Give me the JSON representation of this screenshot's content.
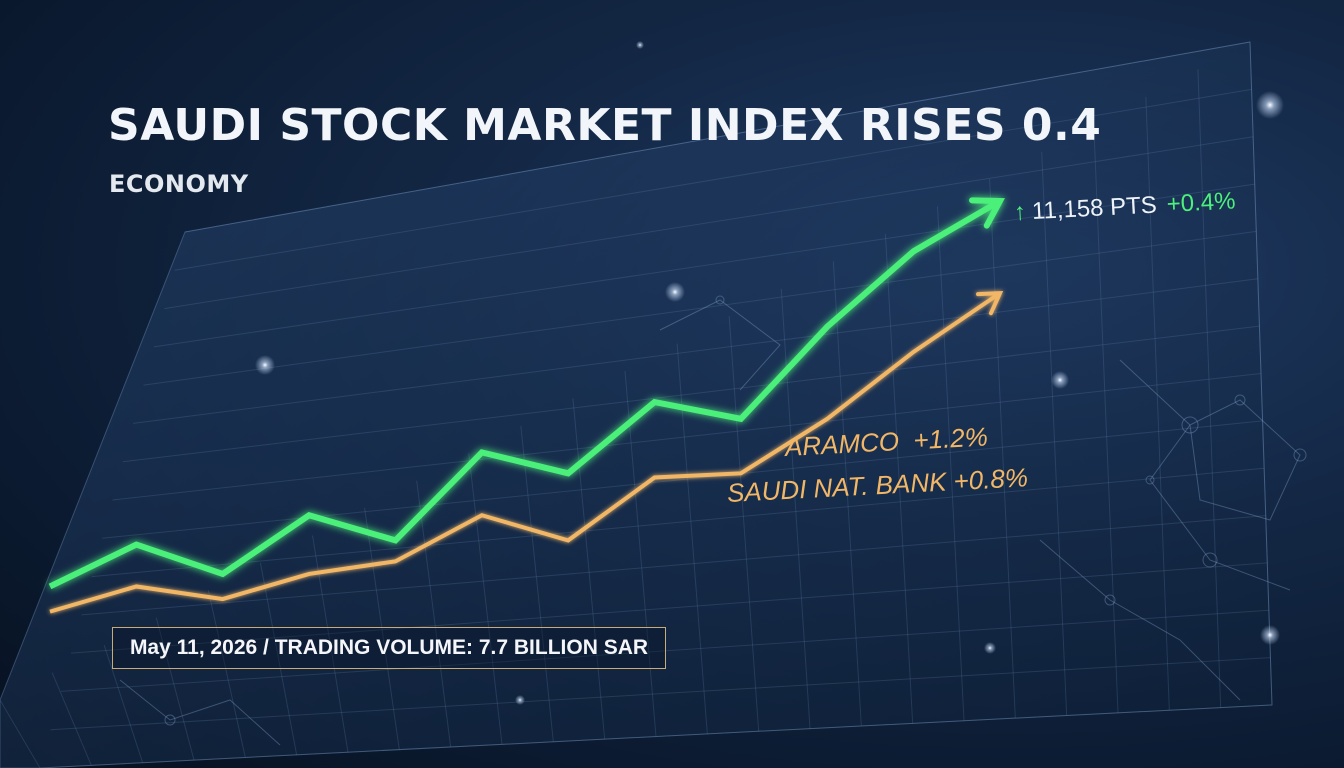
{
  "headline": "SAUDI STOCK MARKET INDEX RISES 0.4",
  "category": "ECONOMY",
  "index_readout": {
    "value": "11,158 PTS",
    "change": "+0.4%",
    "icon": "arrow-up-icon"
  },
  "stock_labels": [
    {
      "name": "ARAMCO",
      "change": "+1.2%"
    },
    {
      "name": "SAUDI NAT. BANK",
      "change": "+0.8%"
    }
  ],
  "footer": "May 11, 2026 / TRADING VOLUME: 7.7 BILLION SAR",
  "colors": {
    "index_line": "#4cf07a",
    "stock_line": "#f2b766",
    "background": "#0b1a30",
    "grid": "#6e8fb8"
  },
  "chart_data": {
    "type": "line",
    "grid": true,
    "x": [
      0,
      1,
      2,
      3,
      4,
      5,
      6,
      7,
      8,
      9,
      10,
      11
    ],
    "series": [
      {
        "values": [
          8,
          18,
          11,
          25,
          19,
          40,
          35,
          52,
          48,
          70,
          88,
          100
        ]
      },
      {
        "values": [
          2,
          8,
          5,
          11,
          14,
          25,
          19,
          34,
          35,
          48,
          64,
          78
        ]
      }
    ],
    "ylim": [
      0,
      105
    ]
  }
}
